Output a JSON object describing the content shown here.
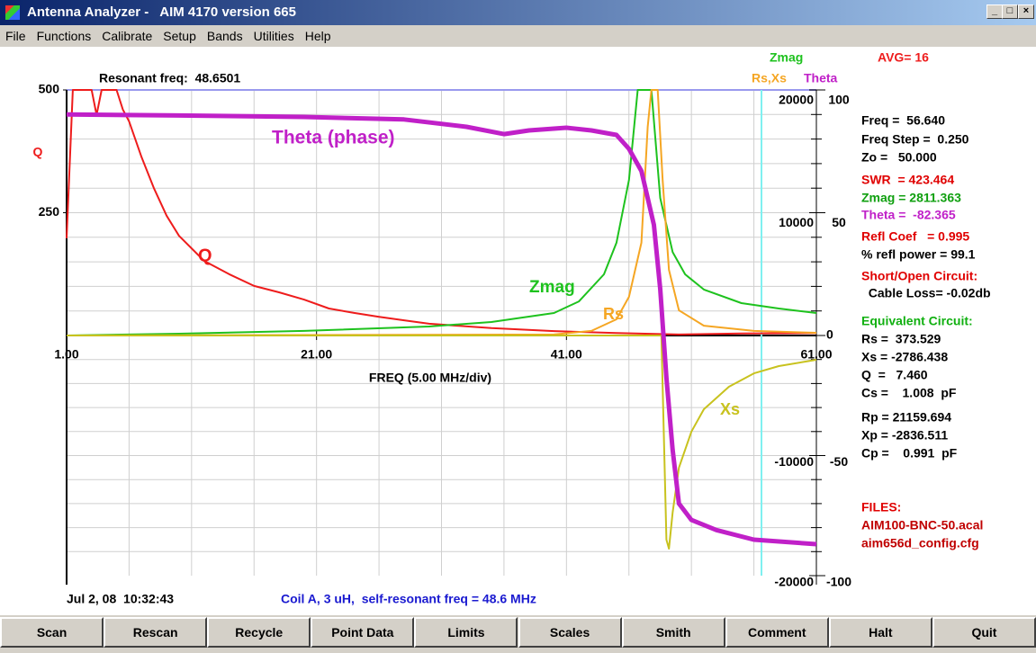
{
  "window": {
    "title": "Antenna Analyzer -   AIM 4170 version 665"
  },
  "menu": [
    "File",
    "Functions",
    "Calibrate",
    "Setup",
    "Bands",
    "Utilities",
    "Help"
  ],
  "chart_data": {
    "type": "line",
    "annotations": {
      "resonant": "Resonant freq:  48.6501",
      "avg": "AVG= 16",
      "zmag_header": "Zmag",
      "theta_curve": "Theta (phase)"
    },
    "xlim": [
      1,
      61
    ],
    "xticks": [
      {
        "value": 1,
        "label": "1.00"
      },
      {
        "value": 21,
        "label": "21.00"
      },
      {
        "value": 41,
        "label": "41.00"
      },
      {
        "value": 61,
        "label": "61.00"
      }
    ],
    "xlabel": "FREQ (5.00 MHz/div)",
    "ylim": [
      0,
      500
    ],
    "yticks": [
      500,
      250
    ],
    "ylabel": "Q",
    "y2lim": [
      -20000,
      20000
    ],
    "y2ticks": [
      20000,
      10000,
      -10000,
      -20000
    ],
    "y2label": "Rs,Xs",
    "y3lim": [
      -100,
      100
    ],
    "y3ticks": [
      100,
      50,
      0,
      -50,
      -100
    ],
    "y3label": "Theta",
    "grid": true,
    "series": [
      {
        "name": "Q",
        "color": "#ee1c1c",
        "axis": "y",
        "x": [
          1,
          1.5,
          3,
          3.4,
          3.8,
          5,
          5.5,
          6,
          7,
          8,
          9,
          10,
          12,
          14,
          16,
          18,
          20,
          22,
          24,
          26,
          28,
          30,
          35,
          40,
          45,
          50,
          55,
          61
        ],
        "values": [
          198,
          500,
          500,
          449,
          500,
          500,
          460,
          436,
          363,
          299,
          244,
          203,
          152,
          125,
          101,
          88,
          73,
          55,
          46,
          38,
          31,
          24,
          15,
          9,
          5,
          2,
          4,
          5
        ]
      },
      {
        "name": "Zmag",
        "color": "#1ec21e",
        "axis": "y2",
        "x": [
          1,
          10,
          20,
          30,
          35,
          40,
          42,
          44,
          45,
          46,
          46.7,
          47.8,
          48.5,
          49.5,
          50.5,
          52,
          55,
          58,
          61
        ],
        "values": [
          0,
          150,
          370,
          730,
          1100,
          1830,
          2780,
          4980,
          7550,
          12670,
          20000,
          20000,
          11200,
          6800,
          4980,
          3740,
          2640,
          2200,
          1830
        ]
      },
      {
        "name": "Rs",
        "color": "#f5a623",
        "axis": "y2",
        "x": [
          1,
          40,
          43,
          45,
          46,
          47,
          47.5,
          47.8,
          48.3,
          48.7,
          49.2,
          50,
          52,
          56,
          61
        ],
        "values": [
          0,
          80,
          370,
          1320,
          3150,
          7550,
          17000,
          20000,
          20000,
          12670,
          5350,
          2050,
          800,
          370,
          220
        ]
      },
      {
        "name": "Xs",
        "color": "#c8c21e",
        "axis": "y2",
        "x": [
          1,
          46,
          48.6,
          49,
          49.2,
          49.5,
          50,
          51,
          52,
          54,
          56,
          58,
          61
        ],
        "values": [
          0,
          0,
          0,
          -17000,
          -17750,
          -14750,
          -11000,
          -8000,
          -6140,
          -4270,
          -3150,
          -2550,
          -2020
        ]
      },
      {
        "name": "Theta",
        "color": "#c020c8",
        "axis": "y3",
        "x": [
          1,
          10,
          20,
          28,
          33,
          36,
          38,
          41,
          43,
          45,
          46,
          47,
          48,
          48.5,
          49,
          49.5,
          50,
          51,
          53,
          56,
          61
        ],
        "values": [
          90,
          89.6,
          89,
          88,
          85,
          82,
          83.5,
          84.6,
          83.5,
          81.7,
          76,
          67,
          45,
          19,
          -17.6,
          -47.6,
          -70,
          -76.8,
          -81,
          -85,
          -86.9
        ]
      }
    ]
  },
  "readout": [
    {
      "text": "Freq =  56.640",
      "color": "#000000"
    },
    {
      "text": "Freq Step =  0.250",
      "color": "#000000"
    },
    {
      "text": "Zo =   50.000",
      "color": "#000000"
    },
    {
      "text": "SWR  = 423.464",
      "color": "#e00000"
    },
    {
      "text": "Zmag = 2811.363",
      "color": "#10a010"
    },
    {
      "text": "Theta =  -82.365",
      "color": "#c020c8"
    },
    {
      "text": "Refl Coef   = 0.995",
      "color": "#e00000"
    },
    {
      "text": "% refl power = 99.1",
      "color": "#000000"
    },
    {
      "text": "Short/Open Circuit:",
      "color": "#e00000"
    },
    {
      "text": "  Cable Loss= -0.02db",
      "color": "#000000"
    },
    {
      "text": "Equivalent Circuit:",
      "color": "#10b010"
    },
    {
      "text": "Rs =  373.529",
      "color": "#000000"
    },
    {
      "text": "Xs = -2786.438",
      "color": "#000000"
    },
    {
      "text": "Q  =   7.460",
      "color": "#000000"
    },
    {
      "text": "Cs =    1.008  pF",
      "color": "#000000"
    },
    {
      "text": "Rp = 21159.694",
      "color": "#000000"
    },
    {
      "text": "Xp = -2836.511",
      "color": "#000000"
    },
    {
      "text": "Cp =    0.991  pF",
      "color": "#000000"
    },
    {
      "text": "FILES:",
      "color": "#e00000"
    },
    {
      "text": "AIM100-BNC-50.acal",
      "color": "#c00000"
    },
    {
      "text": "aim656d_config.cfg",
      "color": "#c00000"
    }
  ],
  "footer": {
    "date": "Jul 2, 08  10:32:43",
    "note": "Coil A, 3 uH,  self-resonant freq = 48.6 MHz"
  },
  "buttons": [
    "Scan",
    "Rescan",
    "Recycle",
    "Point Data",
    "Limits",
    "Scales",
    "Smith",
    "Comment",
    "Halt",
    "Quit"
  ]
}
